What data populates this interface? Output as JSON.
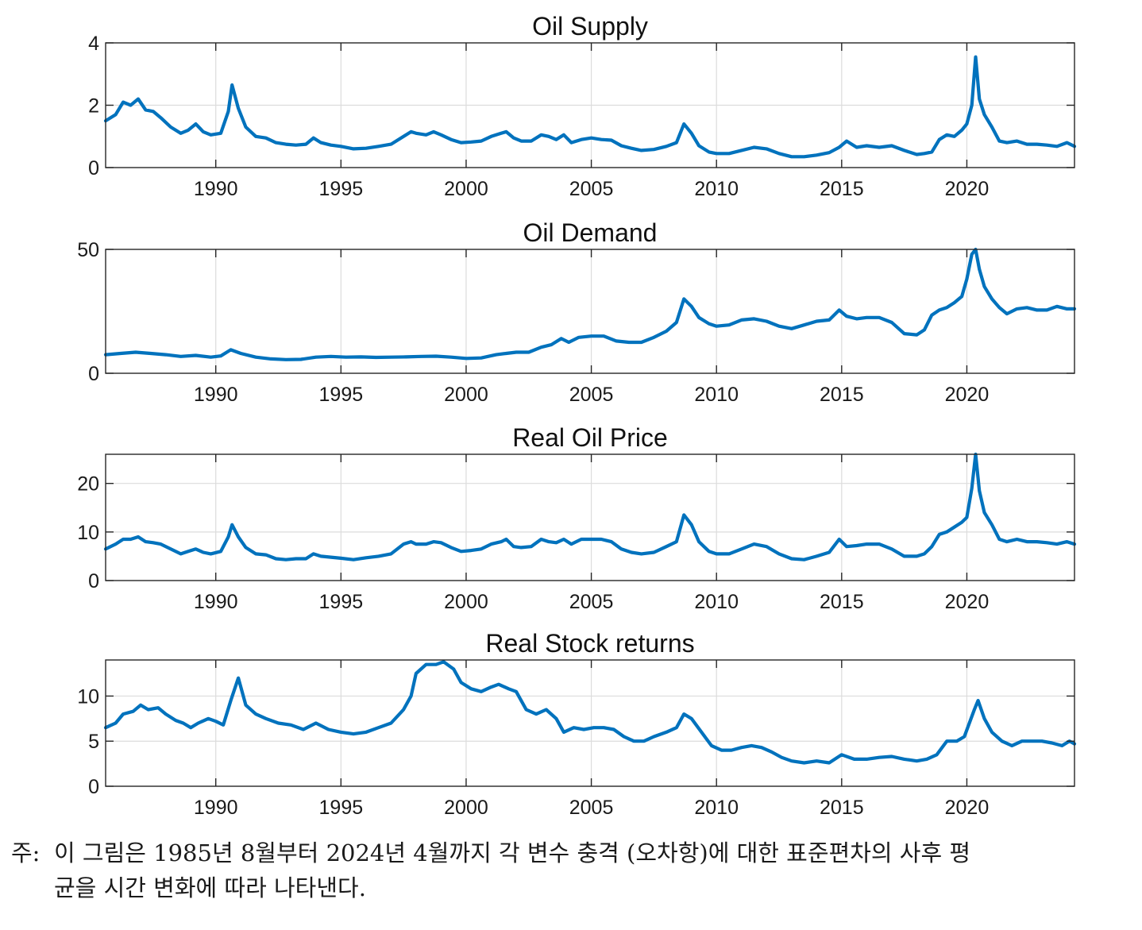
{
  "figure": {
    "line_color": "#0072BD",
    "grid_color": "#dcdcdc",
    "axis_color": "#262626"
  },
  "chart_data": [
    {
      "type": "line",
      "title": "Oil Supply",
      "xlim": [
        1985.6,
        2024.3
      ],
      "ylim": [
        0,
        4
      ],
      "yticks": [
        0,
        2,
        4
      ],
      "xticks": [
        1990,
        1995,
        2000,
        2005,
        2010,
        2015,
        2020
      ],
      "series": [
        {
          "x": [
            1985.6,
            1986.0,
            1986.3,
            1986.6,
            1986.9,
            1987.2,
            1987.5,
            1987.8,
            1988.2,
            1988.6,
            1988.9,
            1989.2,
            1989.5,
            1989.8,
            1990.2,
            1990.5,
            1990.65,
            1990.9,
            1991.2,
            1991.6,
            1992.0,
            1992.4,
            1992.8,
            1993.2,
            1993.6,
            1993.9,
            1994.2,
            1994.6,
            1995.0,
            1995.5,
            1996.0,
            1996.5,
            1997.0,
            1997.5,
            1997.8,
            1998.0,
            1998.4,
            1998.7,
            1999.0,
            1999.4,
            1999.8,
            2000.2,
            2000.6,
            2001.0,
            2001.4,
            2001.6,
            2001.9,
            2002.2,
            2002.6,
            2003.0,
            2003.3,
            2003.6,
            2003.9,
            2004.2,
            2004.6,
            2005.0,
            2005.4,
            2005.8,
            2006.2,
            2006.6,
            2007.0,
            2007.5,
            2008.0,
            2008.4,
            2008.7,
            2009.0,
            2009.3,
            2009.7,
            2010.0,
            2010.5,
            2011.0,
            2011.5,
            2012.0,
            2012.5,
            2013.0,
            2013.5,
            2014.0,
            2014.5,
            2014.9,
            2015.2,
            2015.6,
            2016.0,
            2016.5,
            2017.0,
            2017.5,
            2018.0,
            2018.3,
            2018.6,
            2018.9,
            2019.2,
            2019.5,
            2019.8,
            2020.0,
            2020.2,
            2020.35,
            2020.5,
            2020.7,
            2021.0,
            2021.3,
            2021.6,
            2022.0,
            2022.4,
            2022.8,
            2023.2,
            2023.6,
            2024.0,
            2024.3
          ],
          "values": [
            1.5,
            1.7,
            2.1,
            2.0,
            2.2,
            1.85,
            1.8,
            1.6,
            1.3,
            1.1,
            1.2,
            1.4,
            1.15,
            1.05,
            1.1,
            1.8,
            2.65,
            1.9,
            1.3,
            1.0,
            0.95,
            0.8,
            0.75,
            0.72,
            0.75,
            0.95,
            0.8,
            0.72,
            0.68,
            0.6,
            0.62,
            0.68,
            0.75,
            1.0,
            1.15,
            1.1,
            1.05,
            1.15,
            1.05,
            0.9,
            0.8,
            0.82,
            0.85,
            1.0,
            1.1,
            1.15,
            0.95,
            0.85,
            0.85,
            1.05,
            1.0,
            0.9,
            1.05,
            0.8,
            0.9,
            0.95,
            0.9,
            0.88,
            0.7,
            0.62,
            0.55,
            0.58,
            0.68,
            0.8,
            1.4,
            1.1,
            0.7,
            0.5,
            0.45,
            0.45,
            0.55,
            0.65,
            0.6,
            0.45,
            0.35,
            0.35,
            0.4,
            0.48,
            0.65,
            0.85,
            0.65,
            0.7,
            0.65,
            0.7,
            0.55,
            0.42,
            0.45,
            0.5,
            0.9,
            1.05,
            1.0,
            1.2,
            1.4,
            2.0,
            3.55,
            2.2,
            1.7,
            1.3,
            0.85,
            0.8,
            0.85,
            0.75,
            0.75,
            0.72,
            0.68,
            0.8,
            0.68
          ]
        }
      ]
    },
    {
      "type": "line",
      "title": "Oil Demand",
      "xlim": [
        1985.6,
        2024.3
      ],
      "ylim": [
        0,
        50
      ],
      "yticks": [
        0,
        50
      ],
      "xticks": [
        1990,
        1995,
        2000,
        2005,
        2010,
        2015,
        2020
      ],
      "series": [
        {
          "x": [
            1985.6,
            1986.2,
            1986.8,
            1987.4,
            1988.0,
            1988.6,
            1989.2,
            1989.8,
            1990.2,
            1990.6,
            1991.0,
            1991.6,
            1992.2,
            1992.8,
            1993.4,
            1994.0,
            1994.6,
            1995.2,
            1995.8,
            1996.4,
            1997.0,
            1997.6,
            1998.2,
            1998.8,
            1999.4,
            2000.0,
            2000.6,
            2001.2,
            2001.6,
            2002.0,
            2002.5,
            2003.0,
            2003.4,
            2003.8,
            2004.1,
            2004.5,
            2005.0,
            2005.5,
            2006.0,
            2006.5,
            2007.0,
            2007.5,
            2008.0,
            2008.4,
            2008.7,
            2009.0,
            2009.3,
            2009.7,
            2010.0,
            2010.5,
            2011.0,
            2011.5,
            2012.0,
            2012.5,
            2013.0,
            2013.5,
            2014.0,
            2014.5,
            2014.9,
            2015.2,
            2015.6,
            2016.0,
            2016.5,
            2017.0,
            2017.5,
            2018.0,
            2018.3,
            2018.6,
            2018.9,
            2019.2,
            2019.5,
            2019.8,
            2020.0,
            2020.2,
            2020.35,
            2020.5,
            2020.7,
            2021.0,
            2021.3,
            2021.6,
            2022.0,
            2022.4,
            2022.8,
            2023.2,
            2023.6,
            2024.0,
            2024.3
          ],
          "values": [
            7.5,
            8.0,
            8.5,
            8.0,
            7.5,
            6.8,
            7.2,
            6.5,
            7.0,
            9.5,
            8.0,
            6.5,
            5.8,
            5.5,
            5.6,
            6.5,
            6.8,
            6.5,
            6.6,
            6.4,
            6.5,
            6.6,
            6.8,
            6.9,
            6.5,
            6.0,
            6.2,
            7.5,
            8.0,
            8.5,
            8.5,
            10.5,
            11.5,
            14.0,
            12.5,
            14.5,
            15.0,
            15.0,
            13.0,
            12.5,
            12.5,
            14.5,
            17.0,
            20.5,
            30.0,
            27.0,
            22.5,
            20.0,
            19.0,
            19.5,
            21.5,
            22.0,
            21.0,
            19.0,
            18.0,
            19.5,
            21.0,
            21.5,
            25.5,
            23.0,
            22.0,
            22.5,
            22.5,
            20.5,
            16.0,
            15.5,
            17.5,
            23.5,
            25.5,
            26.5,
            28.5,
            31.0,
            38.0,
            48.0,
            50.0,
            42.0,
            35.0,
            30.0,
            26.5,
            24.0,
            26.0,
            26.5,
            25.5,
            25.5,
            27.0,
            26.0,
            26.0
          ]
        }
      ]
    },
    {
      "type": "line",
      "title": "Real Oil Price",
      "xlim": [
        1985.6,
        2024.3
      ],
      "ylim": [
        0,
        26
      ],
      "yticks": [
        0,
        10,
        20
      ],
      "xticks": [
        1990,
        1995,
        2000,
        2005,
        2010,
        2015,
        2020
      ],
      "series": [
        {
          "x": [
            1985.6,
            1986.0,
            1986.3,
            1986.6,
            1986.9,
            1987.2,
            1987.5,
            1987.8,
            1988.2,
            1988.6,
            1988.9,
            1989.2,
            1989.5,
            1989.8,
            1990.2,
            1990.5,
            1990.65,
            1990.9,
            1991.2,
            1991.6,
            1992.0,
            1992.4,
            1992.8,
            1993.2,
            1993.6,
            1993.9,
            1994.2,
            1994.6,
            1995.0,
            1995.5,
            1996.0,
            1996.5,
            1997.0,
            1997.5,
            1997.8,
            1998.0,
            1998.4,
            1998.7,
            1999.0,
            1999.4,
            1999.8,
            2000.2,
            2000.6,
            2001.0,
            2001.4,
            2001.6,
            2001.9,
            2002.2,
            2002.6,
            2003.0,
            2003.3,
            2003.6,
            2003.9,
            2004.2,
            2004.6,
            2005.0,
            2005.4,
            2005.8,
            2006.2,
            2006.6,
            2007.0,
            2007.5,
            2008.0,
            2008.4,
            2008.7,
            2009.0,
            2009.3,
            2009.7,
            2010.0,
            2010.5,
            2011.0,
            2011.5,
            2012.0,
            2012.5,
            2013.0,
            2013.5,
            2014.0,
            2014.5,
            2014.9,
            2015.2,
            2015.6,
            2016.0,
            2016.5,
            2017.0,
            2017.5,
            2018.0,
            2018.3,
            2018.6,
            2018.9,
            2019.2,
            2019.5,
            2019.8,
            2020.0,
            2020.2,
            2020.35,
            2020.5,
            2020.7,
            2021.0,
            2021.3,
            2021.6,
            2022.0,
            2022.4,
            2022.8,
            2023.2,
            2023.6,
            2024.0,
            2024.3
          ],
          "values": [
            6.5,
            7.5,
            8.5,
            8.5,
            9.0,
            8.0,
            7.8,
            7.5,
            6.5,
            5.5,
            6.0,
            6.5,
            5.8,
            5.5,
            6.0,
            9.0,
            11.5,
            9.0,
            6.8,
            5.5,
            5.3,
            4.5,
            4.3,
            4.5,
            4.5,
            5.5,
            5.0,
            4.8,
            4.6,
            4.3,
            4.7,
            5.0,
            5.5,
            7.5,
            8.0,
            7.5,
            7.5,
            8.0,
            7.8,
            6.8,
            6.0,
            6.2,
            6.5,
            7.5,
            8.0,
            8.5,
            7.0,
            6.8,
            7.0,
            8.5,
            8.0,
            7.8,
            8.5,
            7.5,
            8.5,
            8.5,
            8.5,
            8.0,
            6.5,
            5.8,
            5.5,
            5.8,
            7.0,
            8.0,
            13.5,
            11.5,
            8.0,
            6.0,
            5.5,
            5.5,
            6.5,
            7.5,
            7.0,
            5.5,
            4.5,
            4.3,
            5.0,
            5.8,
            8.5,
            7.0,
            7.2,
            7.5,
            7.5,
            6.5,
            5.0,
            5.0,
            5.5,
            7.0,
            9.5,
            10.0,
            11.0,
            12.0,
            13.0,
            19.0,
            26.0,
            18.5,
            14.0,
            11.5,
            8.5,
            8.0,
            8.5,
            8.0,
            8.0,
            7.8,
            7.5,
            8.0,
            7.5
          ]
        }
      ]
    },
    {
      "type": "line",
      "title": "Real Stock returns",
      "xlim": [
        1985.6,
        2024.3
      ],
      "ylim": [
        0,
        14
      ],
      "yticks": [
        0,
        5,
        10
      ],
      "xticks": [
        1990,
        1995,
        2000,
        2005,
        2010,
        2015,
        2020
      ],
      "series": [
        {
          "x": [
            1985.6,
            1986.0,
            1986.3,
            1986.7,
            1987.0,
            1987.3,
            1987.7,
            1988.0,
            1988.4,
            1988.7,
            1989.0,
            1989.3,
            1989.7,
            1990.0,
            1990.3,
            1990.6,
            1990.9,
            1991.2,
            1991.6,
            1992.0,
            1992.5,
            1993.0,
            1993.5,
            1994.0,
            1994.5,
            1995.0,
            1995.5,
            1996.0,
            1996.5,
            1997.0,
            1997.5,
            1997.8,
            1998.0,
            1998.4,
            1998.8,
            1999.1,
            1999.5,
            1999.8,
            2000.2,
            2000.6,
            2001.0,
            2001.3,
            2001.7,
            2002.0,
            2002.4,
            2002.8,
            2003.2,
            2003.6,
            2003.9,
            2004.3,
            2004.7,
            2005.1,
            2005.5,
            2005.9,
            2006.3,
            2006.7,
            2007.1,
            2007.5,
            2008.0,
            2008.4,
            2008.7,
            2009.0,
            2009.4,
            2009.8,
            2010.2,
            2010.6,
            2011.0,
            2011.4,
            2011.8,
            2012.2,
            2012.6,
            2013.0,
            2013.5,
            2014.0,
            2014.5,
            2015.0,
            2015.5,
            2016.0,
            2016.5,
            2017.0,
            2017.5,
            2018.0,
            2018.4,
            2018.8,
            2019.2,
            2019.6,
            2019.9,
            2020.1,
            2020.3,
            2020.45,
            2020.7,
            2021.0,
            2021.4,
            2021.8,
            2022.2,
            2022.6,
            2023.0,
            2023.4,
            2023.8,
            2024.1,
            2024.3
          ],
          "values": [
            6.5,
            7.0,
            8.0,
            8.3,
            9.0,
            8.5,
            8.7,
            8.0,
            7.3,
            7.0,
            6.5,
            7.0,
            7.5,
            7.2,
            6.8,
            9.5,
            12.0,
            9.0,
            8.0,
            7.5,
            7.0,
            6.8,
            6.3,
            7.0,
            6.3,
            6.0,
            5.8,
            6.0,
            6.5,
            7.0,
            8.5,
            10.0,
            12.5,
            13.5,
            13.5,
            13.8,
            13.0,
            11.5,
            10.8,
            10.5,
            11.0,
            11.3,
            10.8,
            10.5,
            8.5,
            8.0,
            8.5,
            7.5,
            6.0,
            6.5,
            6.3,
            6.5,
            6.5,
            6.3,
            5.5,
            5.0,
            5.0,
            5.5,
            6.0,
            6.5,
            8.0,
            7.5,
            6.0,
            4.5,
            4.0,
            4.0,
            4.3,
            4.5,
            4.3,
            3.8,
            3.2,
            2.8,
            2.6,
            2.8,
            2.6,
            3.5,
            3.0,
            3.0,
            3.2,
            3.3,
            3.0,
            2.8,
            3.0,
            3.5,
            5.0,
            5.0,
            5.5,
            7.0,
            8.5,
            9.5,
            7.5,
            6.0,
            5.0,
            4.5,
            5.0,
            5.0,
            5.0,
            4.8,
            4.5,
            5.0,
            4.7
          ]
        }
      ]
    }
  ],
  "caption": {
    "prefix": "주:",
    "line1": "이 그림은 1985년 8월부터 2024년 4월까지 각 변수 충격 (오차항)에 대한 표준편차의 사후 평",
    "line2": "균을 시간 변화에 따라 나타낸다."
  }
}
